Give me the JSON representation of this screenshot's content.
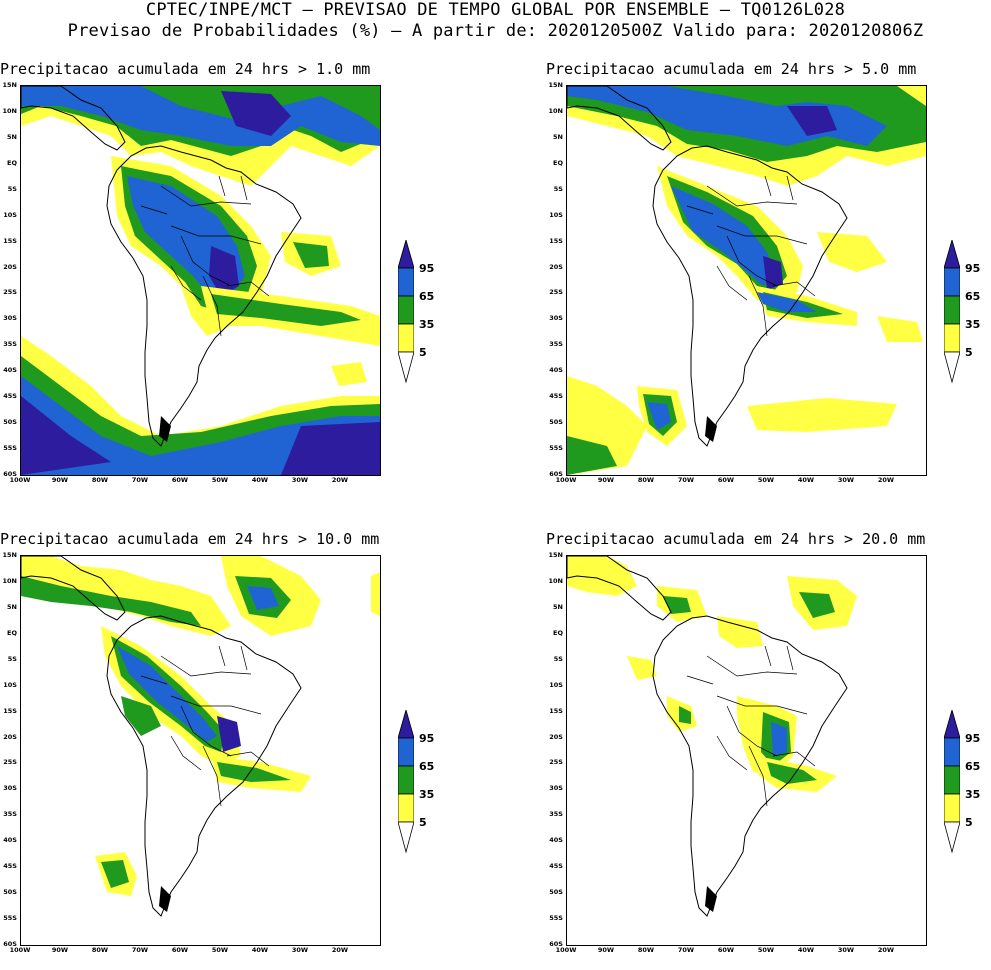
{
  "header": {
    "line1": "CPTEC/INPE/MCT – PREVISAO DE TEMPO GLOBAL POR ENSEMBLE – TQ0126L028",
    "line2": "Previsao de Probabilidades (%) –   A partir de: 2020120500Z  Valido para: 2020120806Z"
  },
  "map_axes": {
    "lat_labels": [
      "15N",
      "10N",
      "5N",
      "EQ",
      "5S",
      "10S",
      "15S",
      "20S",
      "25S",
      "30S",
      "35S",
      "40S",
      "45S",
      "50S",
      "55S",
      "60S"
    ],
    "lon_labels": [
      "100W",
      "90W",
      "80W",
      "70W",
      "60W",
      "50W",
      "40W",
      "30W",
      "20W"
    ]
  },
  "colorbar": {
    "levels": [
      "95",
      "65",
      "35",
      "5"
    ],
    "colors": {
      "c5": "#ffff44",
      "c35": "#1f9a1f",
      "c65": "#1f64d2",
      "c95": "#2d1d9e"
    }
  },
  "panels": [
    {
      "id": "p1",
      "title": "Precipitacao acumulada em 24 hrs > 1.0 mm",
      "threshold": "1.0 mm"
    },
    {
      "id": "p2",
      "title": "Precipitacao acumulada em 24 hrs > 5.0 mm",
      "threshold": "5.0 mm"
    },
    {
      "id": "p3",
      "title": "Precipitacao acumulada em 24 hrs > 10.0 mm",
      "threshold": "10.0 mm"
    },
    {
      "id": "p4",
      "title": "Precipitacao acumulada em 24 hrs > 20.0 mm",
      "threshold": "20.0 mm"
    }
  ]
}
